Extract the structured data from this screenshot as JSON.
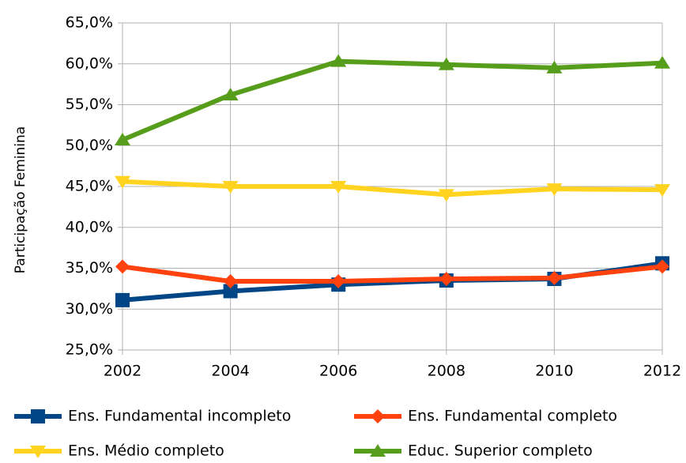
{
  "chart_data": {
    "type": "line",
    "y_label": "Participação Feminina",
    "x": [
      2002,
      2004,
      2006,
      2008,
      2010,
      2012
    ],
    "xlim": [
      2002,
      2012
    ],
    "xticks": [
      2002,
      2004,
      2006,
      2008,
      2010,
      2012
    ],
    "ylim": [
      25,
      65
    ],
    "yticks": [
      {
        "value": 25,
        "label": "25,0%"
      },
      {
        "value": 30,
        "label": "30,0%"
      },
      {
        "value": 35,
        "label": "35,0%"
      },
      {
        "value": 40,
        "label": "40,0%"
      },
      {
        "value": 45,
        "label": "45,0%"
      },
      {
        "value": 50,
        "label": "50,0%"
      },
      {
        "value": 55,
        "label": "55,0%"
      },
      {
        "value": 60,
        "label": "60,0%"
      },
      {
        "value": 65,
        "label": "65,0%"
      }
    ],
    "grid": true,
    "legend": "bottom",
    "series": [
      {
        "name": "Ens. Fundamental incompleto",
        "color": "#004586",
        "marker": "square",
        "values": [
          31.1,
          32.2,
          33.0,
          33.5,
          33.7,
          35.6
        ]
      },
      {
        "name": "Ens. Fundamental completo",
        "color": "#ff420e",
        "marker": "diamond",
        "values": [
          35.2,
          33.4,
          33.4,
          33.7,
          33.8,
          35.2
        ]
      },
      {
        "name": "Ens. Médio completo",
        "color": "#ffd320",
        "marker": "triangle-down",
        "values": [
          45.6,
          45.0,
          45.0,
          44.0,
          44.7,
          44.6
        ]
      },
      {
        "name": "Educ. Superior completo",
        "color": "#579d1c",
        "marker": "triangle-up",
        "values": [
          50.7,
          56.2,
          60.3,
          59.9,
          59.5,
          60.1
        ]
      }
    ]
  }
}
